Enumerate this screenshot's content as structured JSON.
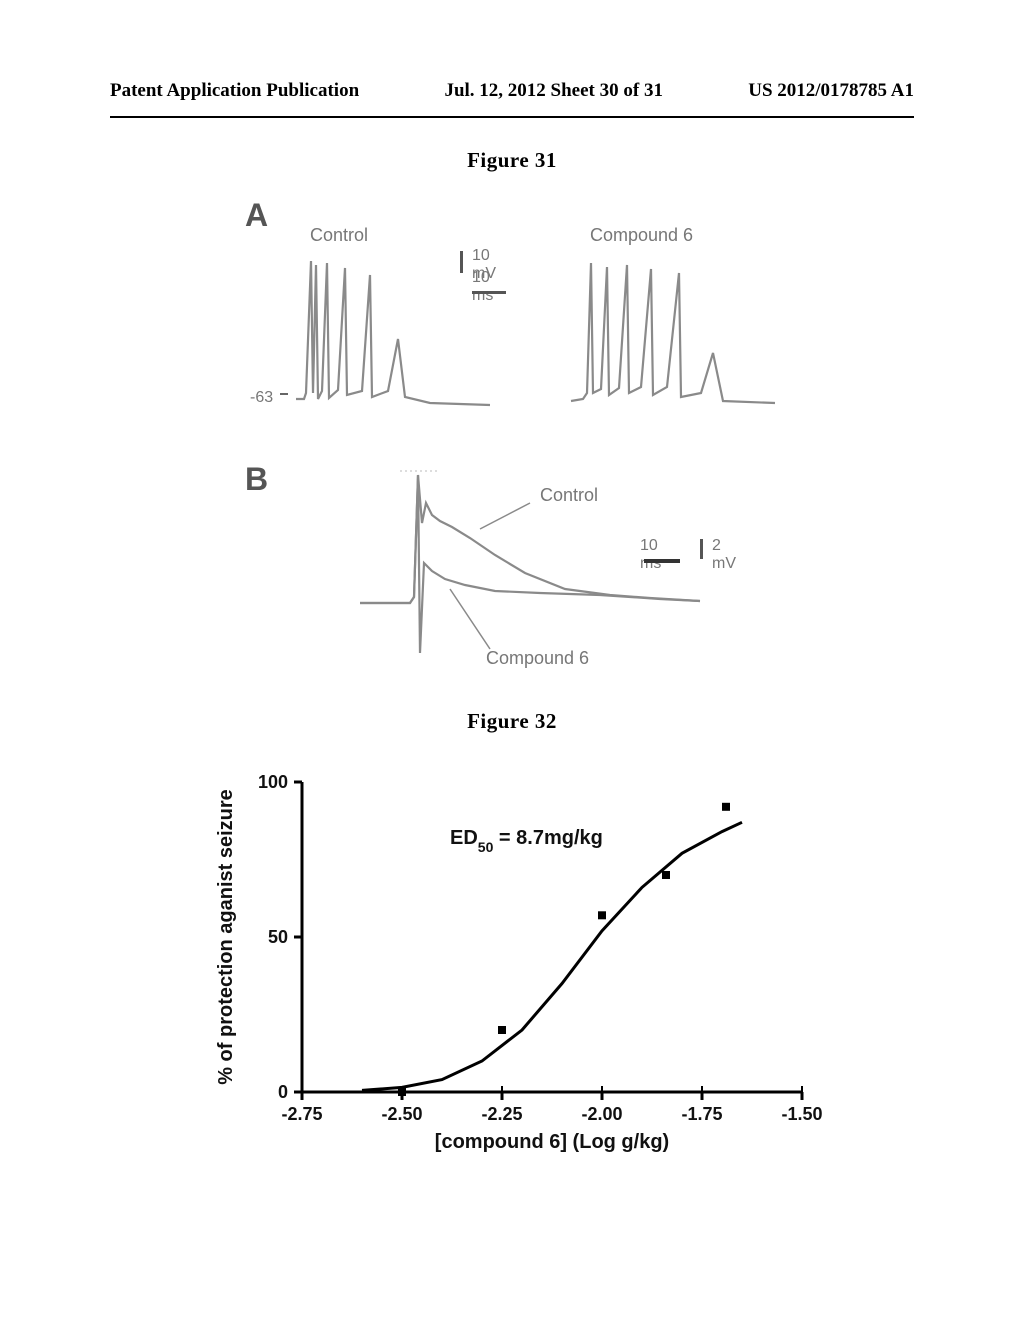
{
  "header": {
    "left": "Patent Application Publication",
    "center": "Jul. 12, 2012  Sheet 30 of 31",
    "right": "US 2012/0178785 A1"
  },
  "figure31": {
    "title": "Figure 31",
    "panelA": {
      "letter": "A",
      "left_label": "Control",
      "right_label": "Compound 6",
      "scale_v": "10 mV",
      "scale_h": "10 ms",
      "baseline_marker": "-63",
      "trace_color": "#8a8a8a"
    },
    "panelB": {
      "letter": "B",
      "upper_label": "Control",
      "lower_label": "Compound 6",
      "scale_h": "10 ms",
      "scale_v": "2 mV",
      "trace_color": "#8a8a8a"
    }
  },
  "figure32": {
    "title": "Figure 32",
    "chart": {
      "type": "scatter-line",
      "xlim": [
        -2.75,
        -1.5
      ],
      "xtick_step": 0.25,
      "xticks": [
        -2.75,
        -2.5,
        -2.25,
        -2.0,
        -1.75,
        -1.5
      ],
      "ylim": [
        0,
        100
      ],
      "ytick_step": 50,
      "yticks": [
        0,
        50,
        100
      ],
      "xlabel": "[compound 6] (Log g/kg)",
      "ylabel": "% of protection aganist seizure",
      "annotation": "ED₅₀ = 8.7mg/kg",
      "annotation_plain": "ED50 = 8.7mg/kg",
      "points": [
        {
          "x": -2.5,
          "y": 0
        },
        {
          "x": -2.25,
          "y": 20
        },
        {
          "x": -2.0,
          "y": 57
        },
        {
          "x": -1.84,
          "y": 70
        },
        {
          "x": -1.69,
          "y": 92
        }
      ],
      "curve": [
        {
          "x": -2.6,
          "y": 0.5
        },
        {
          "x": -2.5,
          "y": 1.5
        },
        {
          "x": -2.4,
          "y": 4
        },
        {
          "x": -2.3,
          "y": 10
        },
        {
          "x": -2.2,
          "y": 20
        },
        {
          "x": -2.1,
          "y": 35
        },
        {
          "x": -2.0,
          "y": 52
        },
        {
          "x": -1.9,
          "y": 66
        },
        {
          "x": -1.8,
          "y": 77
        },
        {
          "x": -1.7,
          "y": 84
        },
        {
          "x": -1.65,
          "y": 87
        }
      ],
      "marker_size": 8,
      "marker_color": "#000000",
      "line_color": "#000000",
      "line_width": 3,
      "axis_color": "#000000",
      "axis_width": 3,
      "background_color": "#ffffff",
      "label_fontsize": 20,
      "tick_fontsize": 18
    }
  }
}
